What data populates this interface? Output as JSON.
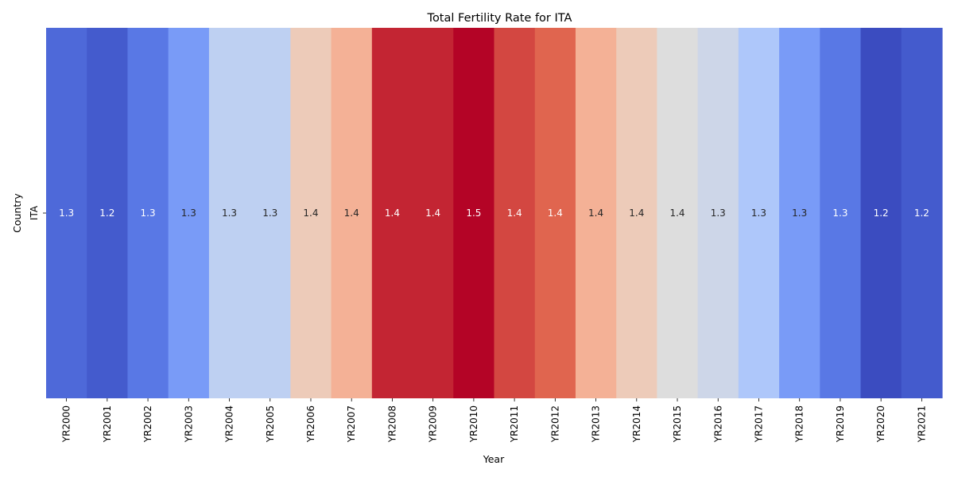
{
  "chart_data": {
    "type": "heatmap",
    "title": "Total Fertility Rate for ITA",
    "xlabel": "Year",
    "ylabel": "Country",
    "rows": [
      "ITA"
    ],
    "columns": [
      "YR2000",
      "YR2001",
      "YR2002",
      "YR2003",
      "YR2004",
      "YR2005",
      "YR2006",
      "YR2007",
      "YR2008",
      "YR2009",
      "YR2010",
      "YR2011",
      "YR2012",
      "YR2013",
      "YR2014",
      "YR2015",
      "YR2016",
      "YR2017",
      "YR2018",
      "YR2019",
      "YR2020",
      "YR2021"
    ],
    "values": [
      [
        1.26,
        1.25,
        1.27,
        1.29,
        1.33,
        1.33,
        1.37,
        1.39,
        1.45,
        1.45,
        1.46,
        1.44,
        1.43,
        1.39,
        1.37,
        1.35,
        1.34,
        1.32,
        1.29,
        1.27,
        1.24,
        1.25
      ]
    ],
    "labels": [
      [
        "1.3",
        "1.2",
        "1.3",
        "1.3",
        "1.3",
        "1.3",
        "1.4",
        "1.4",
        "1.4",
        "1.4",
        "1.5",
        "1.4",
        "1.4",
        "1.4",
        "1.4",
        "1.4",
        "1.3",
        "1.3",
        "1.3",
        "1.3",
        "1.2",
        "1.2"
      ]
    ],
    "colormap": "coolwarm",
    "colorbar": false,
    "grid": false
  }
}
